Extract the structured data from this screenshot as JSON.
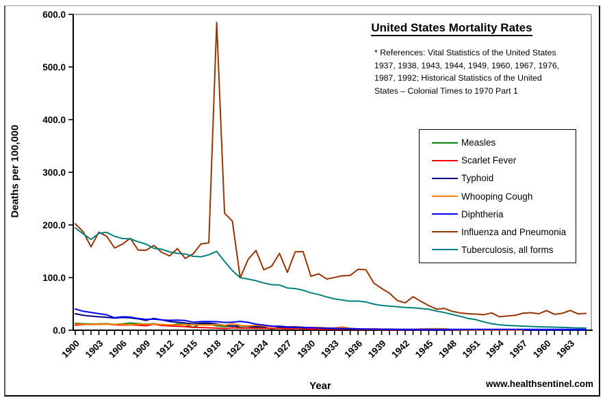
{
  "header": {
    "title": "United States Mortality Rates",
    "references_lines": [
      "* References: Vital Statistics of the United States",
      "1937, 1938, 1943, 1944, 1949, 1960, 1967, 1976,",
      "1987, 1992; Historical Statistics of the United",
      "States – Colonial Times to 1970 Part 1"
    ]
  },
  "footer": {
    "watermark": "www.healthsentinel.com"
  },
  "chart_data": {
    "type": "line",
    "title": "United States Mortality Rates",
    "xlabel": "Year",
    "ylabel": "Deaths per 100,000",
    "x_start": 1900,
    "x_end": 1965,
    "x_tick_label_interval": 3,
    "x_tick_labels": [
      "1900",
      "1903",
      "1906",
      "1909",
      "1912",
      "1915",
      "1918",
      "1921",
      "1924",
      "1927",
      "1930",
      "1933",
      "1936",
      "1939",
      "1942",
      "1945",
      "1948",
      "1951",
      "1954",
      "1957",
      "1960",
      "1963"
    ],
    "ylim": [
      0,
      600
    ],
    "ytick_step": 100,
    "y_tick_labels": [
      "0.0",
      "100.0",
      "200.0",
      "300.0",
      "400.0",
      "500.0",
      "600.0"
    ],
    "grid": false,
    "legend_position": "right-middle-box",
    "axis_color": "#000000",
    "plot_border_color": "#909090",
    "series": [
      {
        "name": "Measles",
        "color": "#008000",
        "values": [
          13.3,
          12.4,
          11.7,
          12.1,
          12.4,
          11.1,
          12.0,
          13.7,
          12.5,
          11.4,
          12.4,
          10.5,
          9.1,
          11.9,
          10.7,
          5.3,
          12.1,
          11.4,
          8.4,
          6.8,
          8.8,
          5.2,
          4.3,
          6.0,
          4.7,
          2.5,
          4.4,
          3.5,
          4.1,
          3.5,
          3.2,
          2.1,
          2.9,
          2.5,
          5.7,
          3.1,
          1.5,
          1.9,
          2.6,
          1.1,
          0.5,
          0.9,
          0.6,
          0.4,
          0.6,
          0.2,
          0.5,
          0.2,
          0.5,
          0.3,
          0.3,
          0.4,
          0.4,
          0.3,
          0.2,
          0.2,
          0.1,
          0.2,
          0.2,
          0.2,
          0.2,
          0.1,
          0.2,
          0.1,
          0.1,
          0.1
        ]
      },
      {
        "name": "Scarlet Fever",
        "color": "#FF0000",
        "values": [
          9.6,
          10.8,
          11.3,
          11.0,
          11.8,
          10.2,
          9.8,
          10.1,
          9.6,
          8.4,
          11.4,
          9.1,
          8.0,
          7.5,
          6.8,
          5.3,
          5.0,
          4.6,
          4.0,
          3.2,
          4.6,
          4.0,
          4.3,
          3.8,
          3.5,
          3.5,
          3.4,
          3.0,
          3.2,
          2.9,
          1.9,
          2.2,
          2.1,
          2.3,
          2.1,
          2.1,
          1.7,
          1.4,
          1.2,
          0.9,
          0.5,
          0.4,
          0.3,
          0.3,
          0.2,
          0.2,
          0.2,
          0.1,
          0.1,
          0.1,
          0.2,
          0.1,
          0.1,
          0.1,
          0.1,
          0.1,
          null,
          null,
          null,
          null,
          null,
          null,
          null,
          null,
          null,
          null
        ]
      },
      {
        "name": "Typhoid",
        "color": "#000080",
        "values": [
          31.3,
          28.5,
          26.8,
          25.5,
          24.6,
          23.1,
          24.2,
          23.5,
          21.6,
          18.7,
          22.5,
          19.8,
          16.5,
          15.3,
          13.8,
          11.8,
          13.3,
          13.5,
          12.0,
          9.1,
          7.6,
          8.8,
          7.5,
          6.9,
          6.5,
          7.8,
          6.1,
          5.5,
          5.2,
          4.7,
          4.8,
          4.3,
          3.8,
          3.4,
          3.0,
          2.8,
          2.2,
          2.0,
          1.8,
          1.5,
          1.1,
          0.9,
          0.7,
          0.6,
          0.5,
          0.4,
          0.3,
          0.3,
          0.2,
          0.2,
          0.1,
          0.1,
          0.1,
          0.1,
          0.1,
          0.1,
          0.1,
          0.1,
          0.1,
          0.1,
          0.1,
          0.1,
          0.1,
          0.1,
          0.1,
          0.1
        ]
      },
      {
        "name": "Whooping Cough",
        "color": "#FF7D00",
        "values": [
          12.2,
          11.2,
          10.8,
          11.4,
          11.6,
          10.9,
          11.2,
          10.3,
          11.5,
          11.4,
          11.6,
          11.0,
          10.2,
          10.1,
          10.4,
          10.5,
          10.0,
          9.8,
          11.0,
          9.0,
          12.5,
          9.2,
          8.1,
          9.3,
          8.0,
          7.0,
          8.3,
          6.1,
          7.2,
          5.9,
          4.8,
          5.4,
          4.2,
          4.4,
          6.1,
          3.7,
          2.3,
          2.4,
          2.8,
          2.1,
          2.2,
          1.9,
          1.7,
          1.5,
          2.5,
          3.0,
          3.0,
          2.8,
          1.2,
          0.8,
          0.5,
          0.4,
          0.3,
          0.2,
          0.2,
          0.1,
          0.1,
          0.1,
          null,
          null,
          null,
          null,
          null,
          null,
          null,
          null
        ]
      },
      {
        "name": "Diphtheria",
        "color": "#0000FF",
        "values": [
          40.3,
          36.0,
          33.8,
          31.5,
          29.2,
          23.6,
          25.4,
          24.9,
          22.3,
          20.5,
          21.1,
          19.6,
          18.8,
          19.2,
          18.4,
          15.2,
          16.3,
          16.5,
          16.2,
          14.8,
          15.3,
          16.8,
          14.9,
          11.6,
          9.7,
          7.8,
          7.5,
          6.3,
          5.8,
          5.3,
          4.9,
          4.3,
          3.9,
          3.5,
          3.2,
          3.1,
          2.6,
          2.3,
          2.1,
          1.9,
          1.8,
          1.7,
          1.6,
          1.6,
          1.5,
          1.5,
          1.5,
          1.5,
          1.5,
          1.5,
          1.5,
          1.5,
          1.5,
          1.5,
          1.5,
          1.5,
          1.5,
          1.5,
          1.5,
          1.5,
          1.5,
          1.5,
          1.5,
          1.5,
          1.5,
          1.5
        ]
      },
      {
        "name": "Influenza and Pneumonia",
        "color": "#993300",
        "values": [
          202.2,
          187.0,
          158.4,
          186.1,
          178.4,
          156.2,
          163.5,
          174.7,
          152.3,
          151.8,
          161.2,
          148.0,
          141.1,
          155.0,
          136.4,
          145.0,
          163.8,
          165.9,
          585.0,
          222.4,
          207.3,
          99.4,
          134.4,
          151.5,
          114.8,
          121.7,
          146.0,
          109.9,
          148.9,
          149.3,
          102.5,
          107.2,
          97.3,
          100.2,
          103.4,
          104.2,
          115.6,
          114.9,
          89.7,
          79.3,
          70.3,
          56.4,
          52.1,
          63.7,
          54.8,
          46.7,
          40.1,
          41.3,
          35.9,
          32.8,
          31.3,
          30.6,
          29.5,
          32.9,
          25.4,
          27.1,
          28.2,
          32.4,
          33.2,
          31.2,
          37.3,
          30.2,
          32.1,
          37.5,
          31.1,
          31.9
        ]
      },
      {
        "name": "Tuberculosis, all forms",
        "color": "#008080",
        "values": [
          194.4,
          183.0,
          172.5,
          183.9,
          186.0,
          178.5,
          174.2,
          173.5,
          168.0,
          163.7,
          155.6,
          153.9,
          148.8,
          146.1,
          144.7,
          140.4,
          139.5,
          143.2,
          149.8,
          130.6,
          113.1,
          99.9,
          97.3,
          94.0,
          89.7,
          86.5,
          85.9,
          80.2,
          79.1,
          76.0,
          71.1,
          67.8,
          63.1,
          59.6,
          57.3,
          55.1,
          55.6,
          53.6,
          49.5,
          47.1,
          45.9,
          44.5,
          43.1,
          42.6,
          41.3,
          39.9,
          36.4,
          33.5,
          30.0,
          26.3,
          22.5,
          20.1,
          15.8,
          12.4,
          10.2,
          9.1,
          8.4,
          7.8,
          7.1,
          6.5,
          6.1,
          5.9,
          5.3,
          4.9,
          4.3,
          4.1
        ]
      }
    ]
  }
}
